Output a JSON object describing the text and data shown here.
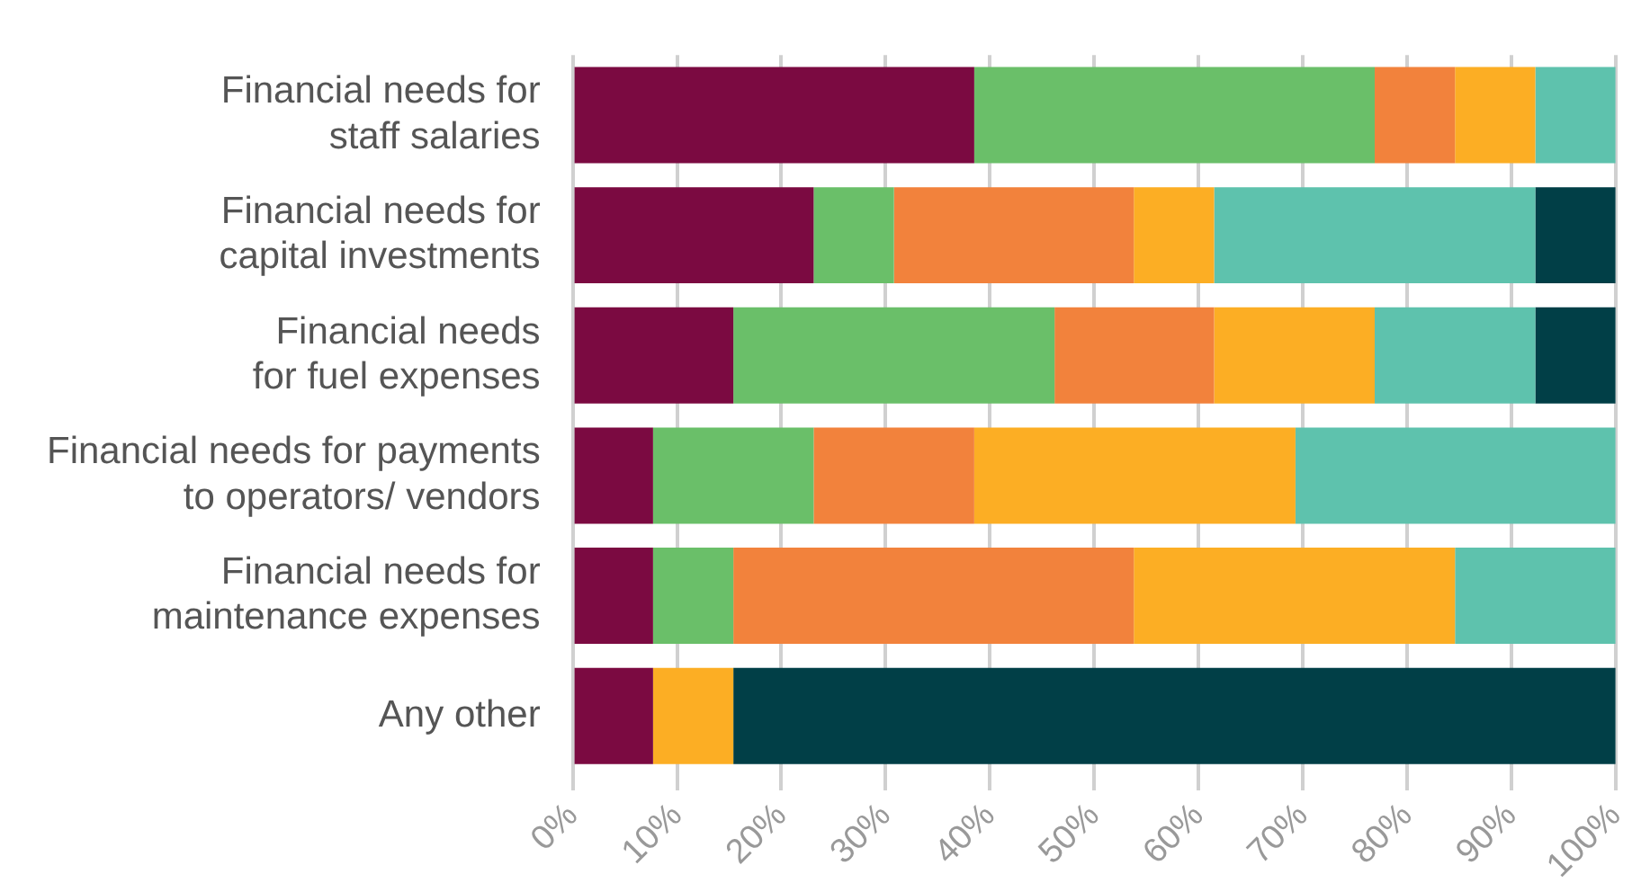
{
  "chart_data": {
    "type": "bar",
    "orientation": "horizontal",
    "stacked": true,
    "categories": [
      "Financial needs for\nstaff salaries",
      "Financial needs for\ncapital investments",
      "Financial needs\nfor fuel expenses",
      "Financial needs for payments\nto operators/ vendors",
      "Financial needs for\nmaintenance expenses",
      "Any other"
    ],
    "series": [
      {
        "color": "#7b0a41",
        "values": [
          38.5,
          23.1,
          15.4,
          7.7,
          7.7,
          7.7
        ]
      },
      {
        "color": "#6abf69",
        "values": [
          38.4,
          7.7,
          30.8,
          15.4,
          7.7,
          0
        ]
      },
      {
        "color": "#f2823c",
        "values": [
          7.7,
          23.0,
          15.3,
          15.4,
          38.4,
          0
        ]
      },
      {
        "color": "#fcae24",
        "values": [
          7.7,
          7.7,
          15.4,
          30.8,
          30.8,
          7.7
        ]
      },
      {
        "color": "#5ec2ad",
        "values": [
          7.7,
          30.8,
          15.4,
          30.7,
          15.4,
          0
        ]
      },
      {
        "color": "#013f47",
        "values": [
          0,
          7.7,
          7.7,
          0,
          0,
          84.6
        ]
      }
    ],
    "xlim": [
      0,
      100
    ],
    "xticks": [
      {
        "value": 0,
        "label": "0%"
      },
      {
        "value": 10,
        "label": "10%"
      },
      {
        "value": 20,
        "label": "20%"
      },
      {
        "value": 30,
        "label": "30%"
      },
      {
        "value": 40,
        "label": "40%"
      },
      {
        "value": 50,
        "label": "50%"
      },
      {
        "value": 60,
        "label": "60%"
      },
      {
        "value": 70,
        "label": "70%"
      },
      {
        "value": 80,
        "label": "80%"
      },
      {
        "value": 90,
        "label": "90%"
      },
      {
        "value": 100,
        "label": "100%"
      }
    ],
    "grid": "x",
    "legend": false
  }
}
